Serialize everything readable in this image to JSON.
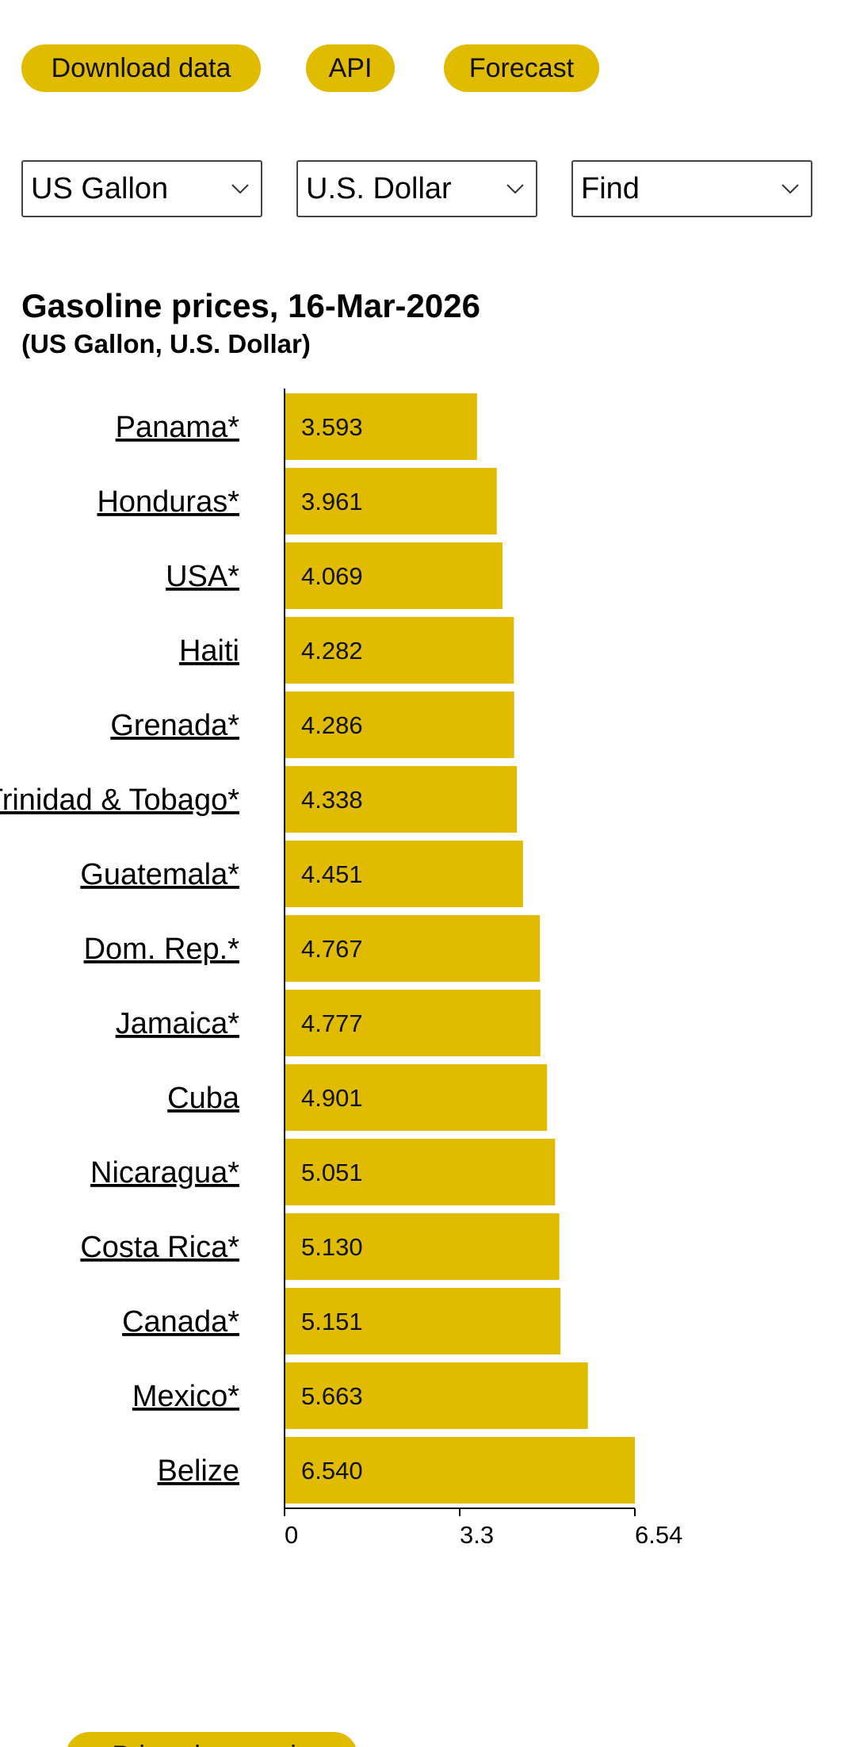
{
  "toolbar": {
    "download_label": "Download data",
    "api_label": "API",
    "forecast_label": "Forecast"
  },
  "selectors": {
    "unit": "US Gallon",
    "currency": "U.S. Dollar",
    "find": "Find"
  },
  "colors": {
    "accent": "#e0bb00",
    "bar": "#e0bb00",
    "axis": "#000000"
  },
  "chart_data": {
    "type": "bar",
    "orientation": "horizontal",
    "title": "Gasoline prices, 16-Mar-2026",
    "subtitle": "(US Gallon, U.S. Dollar)",
    "categories": [
      "Panama*",
      "Honduras*",
      "USA*",
      "Haiti ",
      "Grenada*",
      "Trinidad & Tobago*",
      "Guatemala*",
      "Dom. Rep.*",
      "Jamaica*",
      "Cuba ",
      "Nicaragua*",
      "Costa Rica*",
      "Canada*",
      "Mexico*",
      "Belize "
    ],
    "value_labels": [
      "3.593",
      "3.961",
      "4.069",
      "4.282",
      "4.286",
      "4.338",
      "4.451",
      "4.767",
      "4.777",
      "4.901",
      "5.051",
      "5.130",
      "5.151",
      "5.663",
      "6.540"
    ],
    "values": [
      3.593,
      3.961,
      4.069,
      4.282,
      4.286,
      4.338,
      4.451,
      4.767,
      4.777,
      4.901,
      5.051,
      5.13,
      5.151,
      5.663,
      6.54
    ],
    "xlim": [
      0,
      6.54
    ],
    "xticks": [
      {
        "value": 0,
        "label": "0"
      },
      {
        "value": 3.27,
        "label": "3.3"
      },
      {
        "value": 6.54,
        "label": "6.54"
      }
    ],
    "grid": false,
    "legend": "none"
  },
  "footer": {
    "button_label": "Price changes in"
  }
}
